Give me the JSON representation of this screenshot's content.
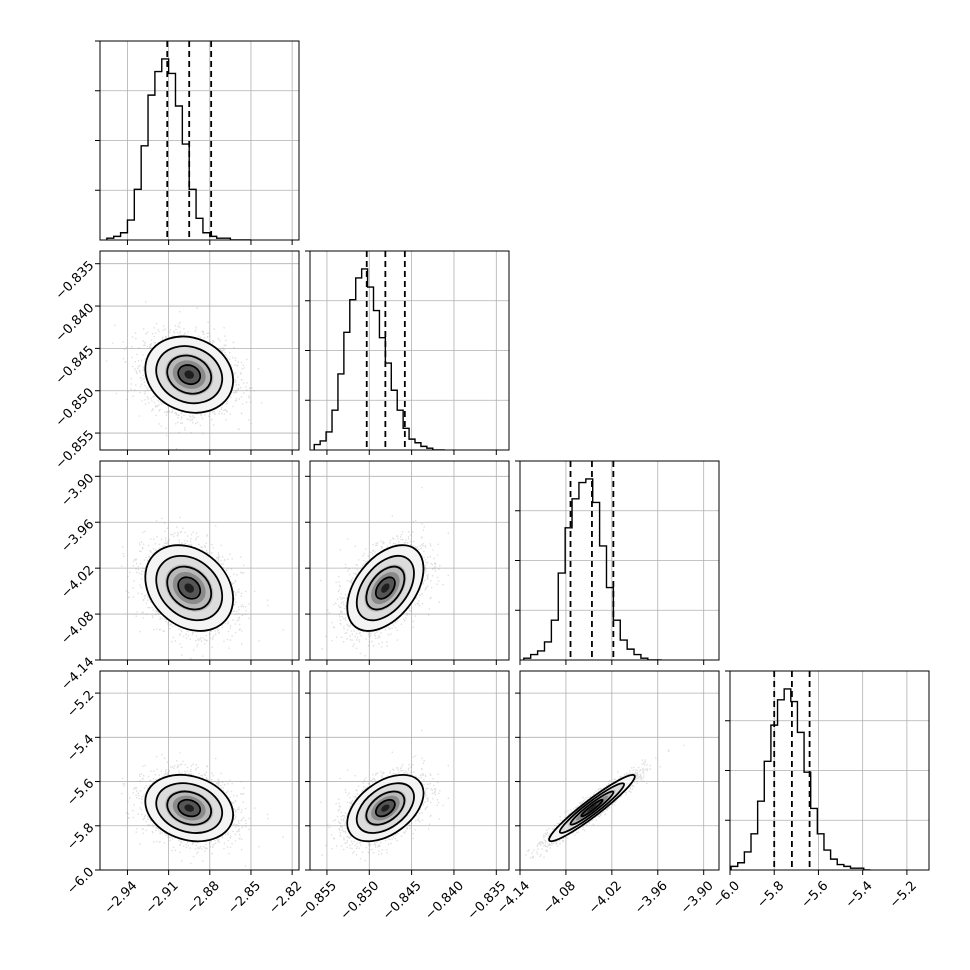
{
  "chart_data": {
    "type": "corner",
    "parameters": [
      {
        "range": [
          -2.96,
          -2.815
        ],
        "ticks": [
          -2.94,
          -2.91,
          -2.88,
          -2.85,
          -2.82
        ],
        "tick_labels": [
          "−2.94",
          "−2.91",
          "−2.88",
          "−2.85",
          "−2.82"
        ],
        "quantiles": [
          -2.911,
          -2.895,
          -2.879
        ],
        "median": -2.895,
        "sigma": 0.016
      },
      {
        "range": [
          -0.857,
          -0.8335
        ],
        "ticks": [
          -0.855,
          -0.85,
          -0.845,
          -0.84,
          -0.835
        ],
        "tick_labels": [
          "−0.855",
          "−0.850",
          "−0.845",
          "−0.840",
          "−0.835"
        ],
        "quantiles": [
          -0.8503,
          -0.8481,
          -0.8458
        ],
        "median": -0.8481,
        "sigma": 0.00225
      },
      {
        "range": [
          -4.14,
          -3.88
        ],
        "ticks": [
          -4.14,
          -4.08,
          -4.02,
          -3.96,
          -3.9
        ],
        "tick_labels": [
          "−4.14",
          "−4.08",
          "−4.02",
          "−3.96",
          "−3.90"
        ],
        "quantiles": [
          -4.074,
          -4.046,
          -4.018
        ],
        "median": -4.046,
        "sigma": 0.028
      },
      {
        "range": [
          -6.0,
          -5.1
        ],
        "ticks": [
          -6.0,
          -5.8,
          -5.6,
          -5.4,
          -5.2
        ],
        "tick_labels": [
          "−6.0",
          "−5.8",
          "−5.6",
          "−5.4",
          "−5.2"
        ],
        "quantiles": [
          -5.8,
          -5.72,
          -5.64
        ],
        "median": -5.72,
        "sigma": 0.075
      }
    ],
    "histograms": [
      {
        "edges": [
          -2.955,
          -2.95,
          -2.945,
          -2.94,
          -2.935,
          -2.93,
          -2.925,
          -2.92,
          -2.915,
          -2.91,
          -2.905,
          -2.9,
          -2.895,
          -2.89,
          -2.885,
          -2.88,
          -2.875,
          -2.87,
          -2.865,
          -2.86,
          -2.855,
          -2.85
        ],
        "counts": [
          0.01,
          0.02,
          0.04,
          0.11,
          0.28,
          0.52,
          0.8,
          0.93,
          1.0,
          0.92,
          0.74,
          0.53,
          0.28,
          0.12,
          0.04,
          0.02,
          0.01,
          0.01,
          0.0,
          0.0,
          0.0
        ]
      },
      {
        "edges": [
          -0.8565,
          -0.8558,
          -0.8551,
          -0.8544,
          -0.8537,
          -0.853,
          -0.8523,
          -0.8516,
          -0.8509,
          -0.8502,
          -0.8495,
          -0.8488,
          -0.8481,
          -0.8474,
          -0.8467,
          -0.846,
          -0.8453,
          -0.8446,
          -0.8439,
          -0.8432,
          -0.8425,
          -0.8418,
          -0.8411
        ],
        "counts": [
          0.03,
          0.05,
          0.1,
          0.22,
          0.42,
          0.65,
          0.83,
          0.95,
          1.0,
          0.9,
          0.77,
          0.62,
          0.48,
          0.33,
          0.22,
          0.12,
          0.06,
          0.04,
          0.02,
          0.01,
          0.0,
          0.0
        ]
      },
      {
        "edges": [
          -4.135,
          -4.126,
          -4.117,
          -4.108,
          -4.099,
          -4.09,
          -4.081,
          -4.072,
          -4.063,
          -4.054,
          -4.045,
          -4.036,
          -4.027,
          -4.018,
          -4.009,
          -4.0,
          -3.991,
          -3.982,
          -3.973,
          -3.964,
          -3.955
        ],
        "counts": [
          0.01,
          0.03,
          0.05,
          0.1,
          0.22,
          0.48,
          0.73,
          0.89,
          0.98,
          1.0,
          0.87,
          0.63,
          0.4,
          0.22,
          0.11,
          0.06,
          0.03,
          0.01,
          0.0,
          0.0
        ]
      },
      {
        "edges": [
          -5.995,
          -5.965,
          -5.935,
          -5.905,
          -5.875,
          -5.845,
          -5.815,
          -5.785,
          -5.755,
          -5.725,
          -5.695,
          -5.665,
          -5.635,
          -5.605,
          -5.575,
          -5.545,
          -5.515,
          -5.485,
          -5.455,
          -5.425,
          -5.395,
          -5.365
        ],
        "counts": [
          0.02,
          0.04,
          0.1,
          0.2,
          0.38,
          0.6,
          0.8,
          0.94,
          1.0,
          0.93,
          0.76,
          0.54,
          0.34,
          0.2,
          0.11,
          0.06,
          0.03,
          0.02,
          0.01,
          0.01,
          0.0
        ]
      }
    ],
    "correlations": [
      [
        1.0,
        -0.15,
        -0.25,
        -0.2
      ],
      [
        -0.15,
        1.0,
        0.45,
        0.45
      ],
      [
        -0.25,
        0.45,
        1.0,
        0.95
      ],
      [
        -0.2,
        0.45,
        0.95,
        1.0
      ]
    ],
    "contour_levels_sigma": [
      0.5,
      1.0,
      1.5,
      2.0
    ],
    "grid": true
  }
}
